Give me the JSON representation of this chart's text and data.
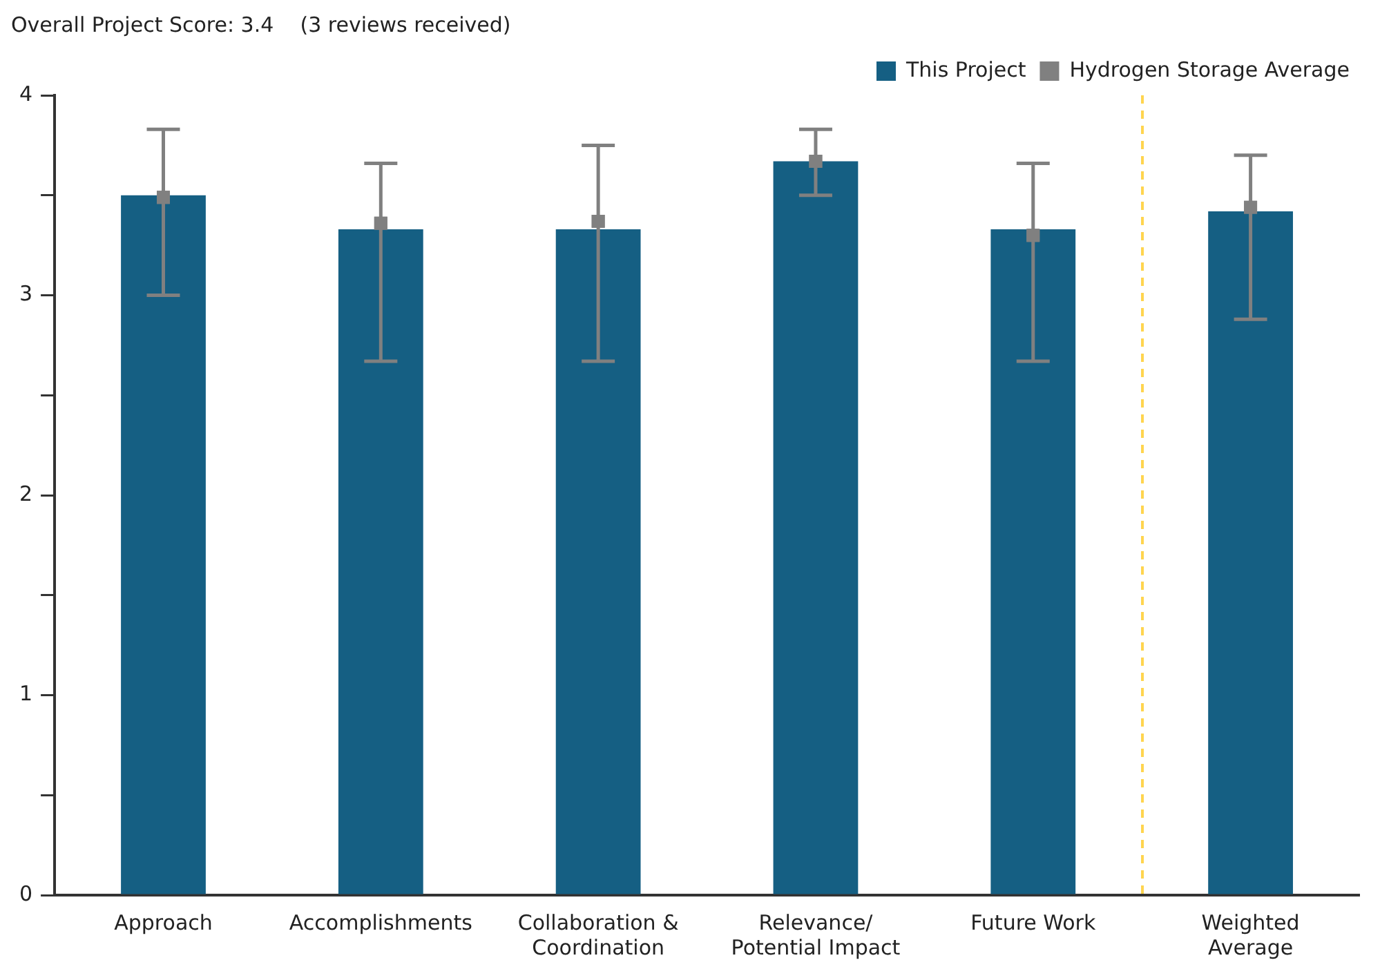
{
  "chart_data": {
    "type": "bar",
    "title": "Overall Project Score: 3.4    (3 reviews received)",
    "categories": [
      "Approach",
      "Accomplishments",
      "Collaboration &\nCoordination",
      "Relevance/\nPotential Impact",
      "Future Work",
      "Weighted\nAverage"
    ],
    "series": [
      {
        "name": "This Project",
        "color": "#155f83",
        "values": [
          3.5,
          3.33,
          3.33,
          3.67,
          3.33,
          3.42
        ]
      },
      {
        "name": "Hydrogen Storage Average",
        "type": "scatter",
        "color": "#808080",
        "marker": "square",
        "x": [
          "Approach",
          "Accomplishments",
          "Collaboration &\nCoordination",
          "Relevance/\nPotential Impact",
          "Future Work",
          "Weighted\nAverage"
        ],
        "values": [
          3.49,
          3.36,
          3.37,
          3.67,
          3.3,
          3.44
        ],
        "errors": [
          [
            3.0,
            3.83
          ],
          [
            2.67,
            3.66
          ],
          [
            2.67,
            3.75
          ],
          [
            3.5,
            3.83
          ],
          [
            2.67,
            3.66
          ],
          [
            2.88,
            3.7
          ]
        ]
      }
    ],
    "ylim": [
      0,
      4
    ],
    "yticks": [
      0,
      {
        "value": 0.5,
        "label": null
      },
      1,
      {
        "value": 1.5,
        "label": null
      },
      2,
      {
        "value": 2.5,
        "label": null
      },
      3,
      {
        "value": 3.5,
        "label": null
      },
      4
    ],
    "grid": false,
    "legend": "top right"
  }
}
